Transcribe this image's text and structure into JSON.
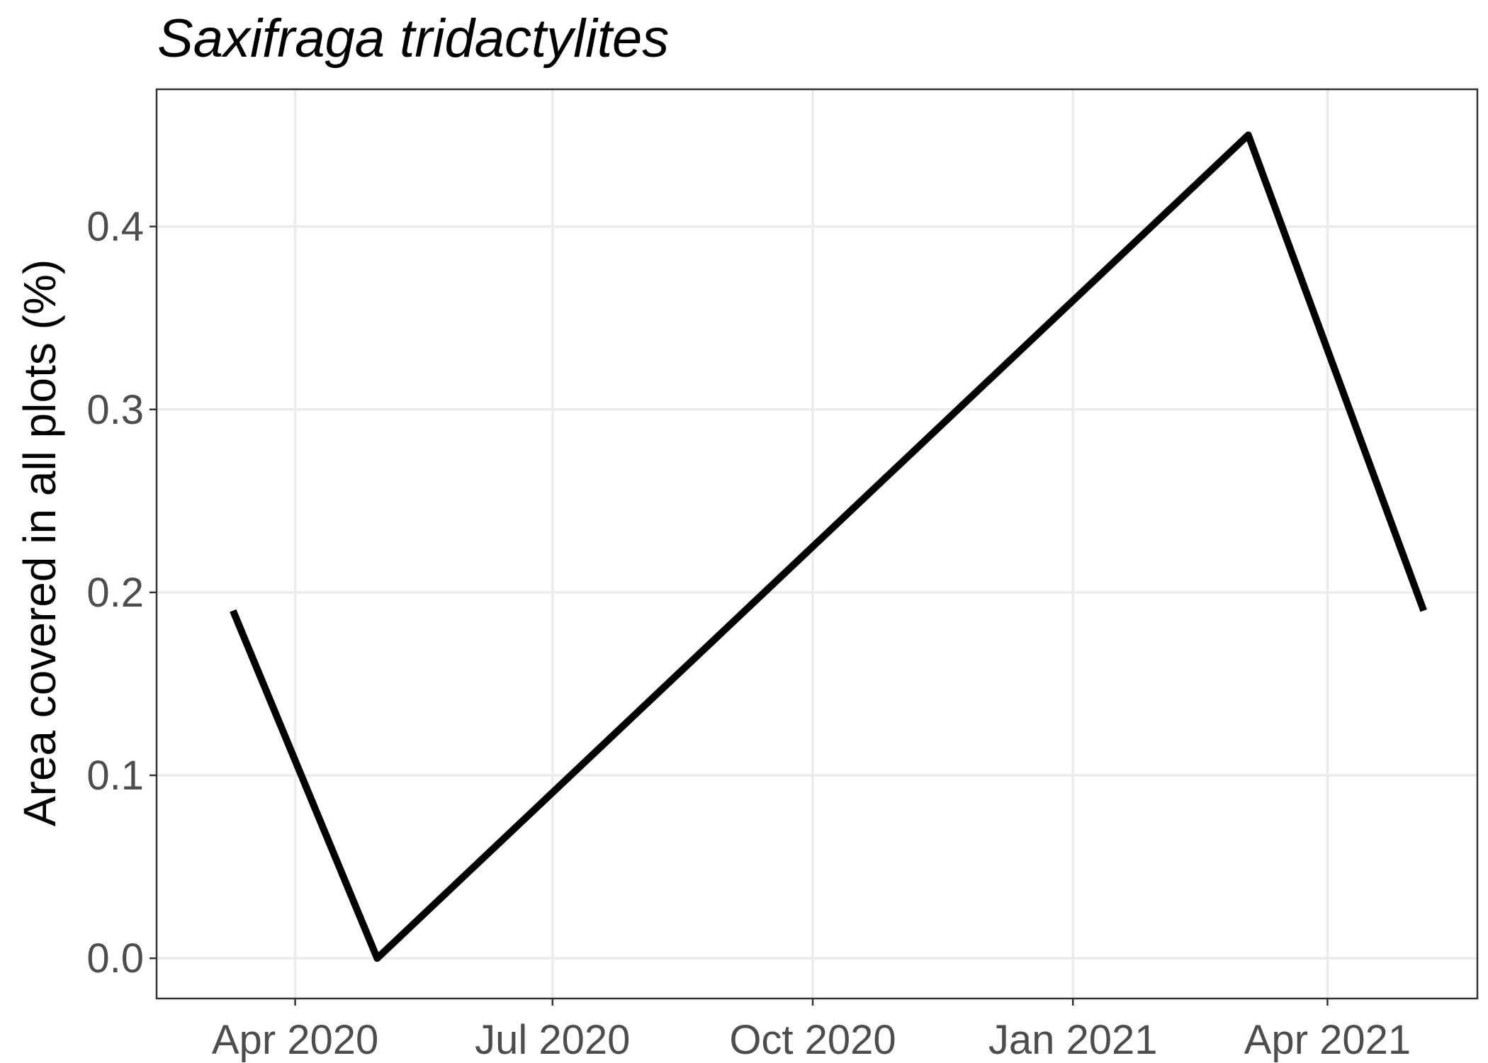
{
  "chart_data": {
    "type": "line",
    "title": "Saxifraga tridactylites",
    "xlabel": "",
    "ylabel": "Area covered in all plots (%)",
    "x": [
      "2020-03-10",
      "2020-04-30",
      "2021-03-04",
      "2021-05-05"
    ],
    "series": [
      {
        "values": [
          0.19,
          0.0,
          0.45,
          0.19
        ]
      }
    ],
    "xlim": [
      "2020-02-12",
      "2021-05-24"
    ],
    "ylim": [
      -0.022,
      0.475
    ],
    "x_ticks": [
      {
        "date": "2020-04-01",
        "label": "Apr 2020"
      },
      {
        "date": "2020-07-01",
        "label": "Jul 2020"
      },
      {
        "date": "2020-10-01",
        "label": "Oct 2020"
      },
      {
        "date": "2021-01-01",
        "label": "Jan 2021"
      },
      {
        "date": "2021-04-01",
        "label": "Apr 2021"
      }
    ],
    "y_ticks": [
      {
        "value": 0.0,
        "label": "0.0"
      },
      {
        "value": 0.1,
        "label": "0.1"
      },
      {
        "value": 0.2,
        "label": "0.2"
      },
      {
        "value": 0.3,
        "label": "0.3"
      },
      {
        "value": 0.4,
        "label": "0.4"
      }
    ],
    "grid": true,
    "legend": "none",
    "line_color": "#000000",
    "grid_color": "#ebebeb"
  }
}
